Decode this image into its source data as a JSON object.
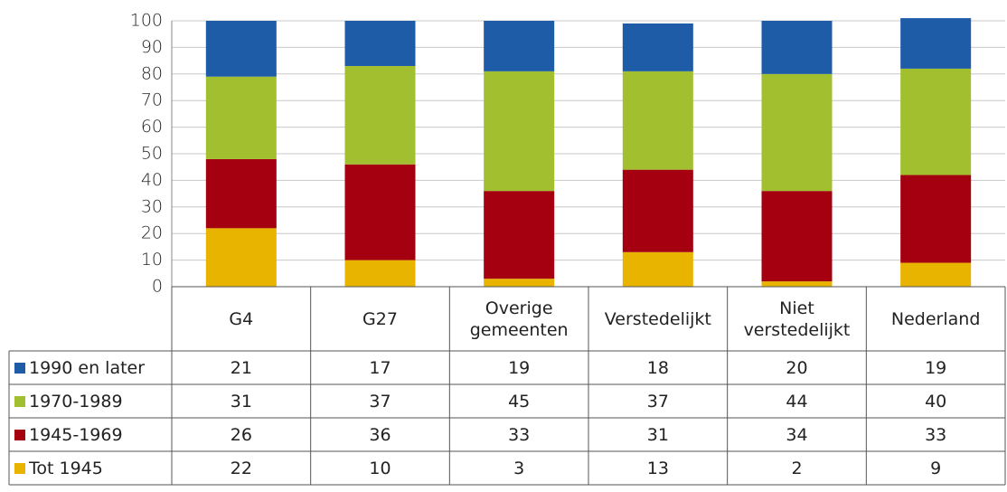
{
  "chart_data": {
    "type": "stacked-bar",
    "categories": [
      "G4",
      "G27",
      "Overige gemeenten",
      "Verstedelijkt",
      "Niet verstedelijkt",
      "Nederland"
    ],
    "series": [
      {
        "name": "1990 en later",
        "color": "#1f5ca8",
        "values": [
          21,
          17,
          19,
          18,
          20,
          19
        ]
      },
      {
        "name": "1970-1989",
        "color": "#a2bf2f",
        "values": [
          31,
          37,
          45,
          37,
          44,
          40
        ]
      },
      {
        "name": "1945-1969",
        "color": "#a50010",
        "values": [
          26,
          36,
          33,
          31,
          34,
          33
        ]
      },
      {
        "name": "Tot 1945",
        "color": "#e8b400",
        "values": [
          22,
          10,
          3,
          13,
          2,
          9
        ]
      }
    ],
    "ylim": [
      0,
      100
    ],
    "yticks": [
      0,
      10,
      20,
      30,
      40,
      50,
      60,
      70,
      80,
      90,
      100
    ],
    "grid": true
  }
}
